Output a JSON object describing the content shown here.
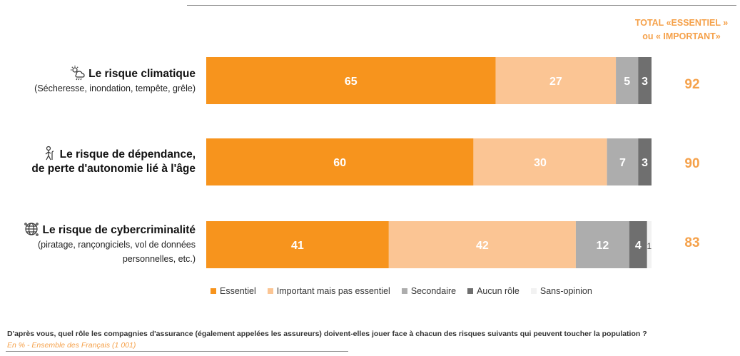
{
  "total_header": {
    "line1": "TOTAL «ESSENTIEL »",
    "line2": "ou « IMPORTANT»"
  },
  "rows": [
    {
      "icon": "climate-icon",
      "title": "Le risque climatique",
      "subtitle": [
        "(Sécheresse, inondation, tempête, grêle)"
      ],
      "total": "92"
    },
    {
      "icon": "elderly-person-icon",
      "title": "Le risque de dépendance,",
      "subtitle": [
        "de perte d'autonomie lié à l'âge"
      ],
      "subtitle_bold": true,
      "total": "90"
    },
    {
      "icon": "globe-network-icon",
      "title": "Le risque de cybercriminalité",
      "subtitle": [
        "(piratage, rançongiciels, vol de données",
        "personnelles, etc.)"
      ],
      "total": "83"
    }
  ],
  "chart_data": {
    "type": "bar",
    "orientation": "horizontal",
    "stacked": true,
    "categories": [
      "Le risque climatique",
      "Le risque de dépendance, de perte d'autonomie lié à l'âge",
      "Le risque de cybercriminalité"
    ],
    "series": [
      {
        "name": "Essentiel",
        "color": "#f7941d",
        "text_color": "#ffffff",
        "values": [
          65,
          60,
          41
        ]
      },
      {
        "name": "Important mais pas essentiel",
        "color": "#fbc594",
        "text_color": "#ffffff",
        "values": [
          27,
          30,
          42
        ]
      },
      {
        "name": "Secondaire",
        "color": "#adadad",
        "text_color": "#ffffff",
        "values": [
          5,
          7,
          12
        ]
      },
      {
        "name": "Aucun rôle",
        "color": "#6f6f6f",
        "text_color": "#ffffff",
        "values": [
          3,
          3,
          4
        ]
      },
      {
        "name": "Sans-opinion",
        "color": "#f2f2f2",
        "text_color": "#555555",
        "values": [
          0,
          0,
          1
        ]
      }
    ],
    "xlim": [
      0,
      100
    ],
    "legend_position": "bottom"
  },
  "footer": {
    "question": "D'après vous, quel rôle les compagnies d'assurance (également appelées les assureurs) doivent-elles jouer face à chacun des risques suivants qui peuvent toucher la population ?",
    "base": "En % - Ensemble des Français (1 001)"
  }
}
